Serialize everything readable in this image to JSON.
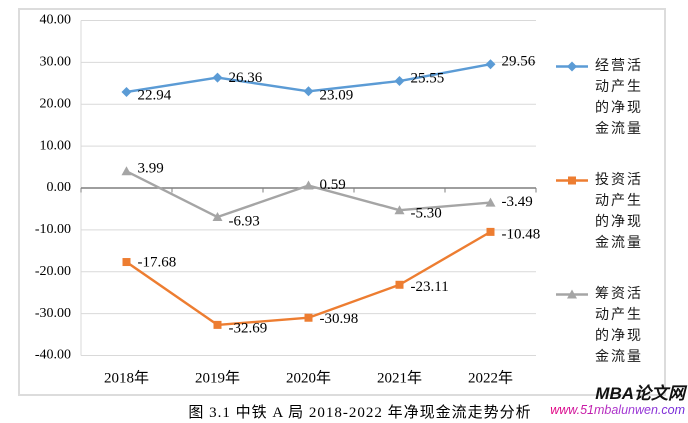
{
  "chart_data": {
    "type": "line",
    "categories": [
      "2018年",
      "2019年",
      "2020年",
      "2021年",
      "2022年"
    ],
    "series": [
      {
        "name": "经营活动产生的净现金流量",
        "marker": "diamond",
        "color": "#5B9BD5",
        "values": [
          22.94,
          26.36,
          23.09,
          25.55,
          29.56
        ]
      },
      {
        "name": "投资活动产生的净现金流量",
        "marker": "square",
        "color": "#ED7D31",
        "values": [
          -17.68,
          -32.69,
          -30.98,
          -23.11,
          -10.48
        ]
      },
      {
        "name": "筹资活动产生的净现金流量",
        "marker": "triangle",
        "color": "#A5A5A5",
        "values": [
          3.99,
          -6.93,
          0.59,
          -5.3,
          -3.49
        ]
      }
    ],
    "title": "",
    "xlabel": "",
    "ylabel": "",
    "ylim": [
      -40,
      40
    ],
    "ytick_step": 10,
    "ytick_labels": [
      "40.00",
      "30.00",
      "20.00",
      "10.00",
      "0.00",
      "-10.00",
      "-20.00",
      "-30.00",
      "-40.00"
    ],
    "grid": true,
    "legend_position": "right",
    "data_labels": true
  },
  "colors": {
    "gridline": "#d9d9d9",
    "zero_axis": "#7f7f7f",
    "axis_line": "#d9d9d9",
    "label_text": "#000000",
    "frame_border": "#dcdcdc",
    "watermark_gradient_start": "#e6007e",
    "watermark_gradient_end": "#6d28d9"
  },
  "caption": "图 3.1 中铁 A 局 2018-2022 年净现金流走势分析",
  "watermark": {
    "title": "MBA论文网",
    "url": "www.51mbalunwen.com"
  }
}
